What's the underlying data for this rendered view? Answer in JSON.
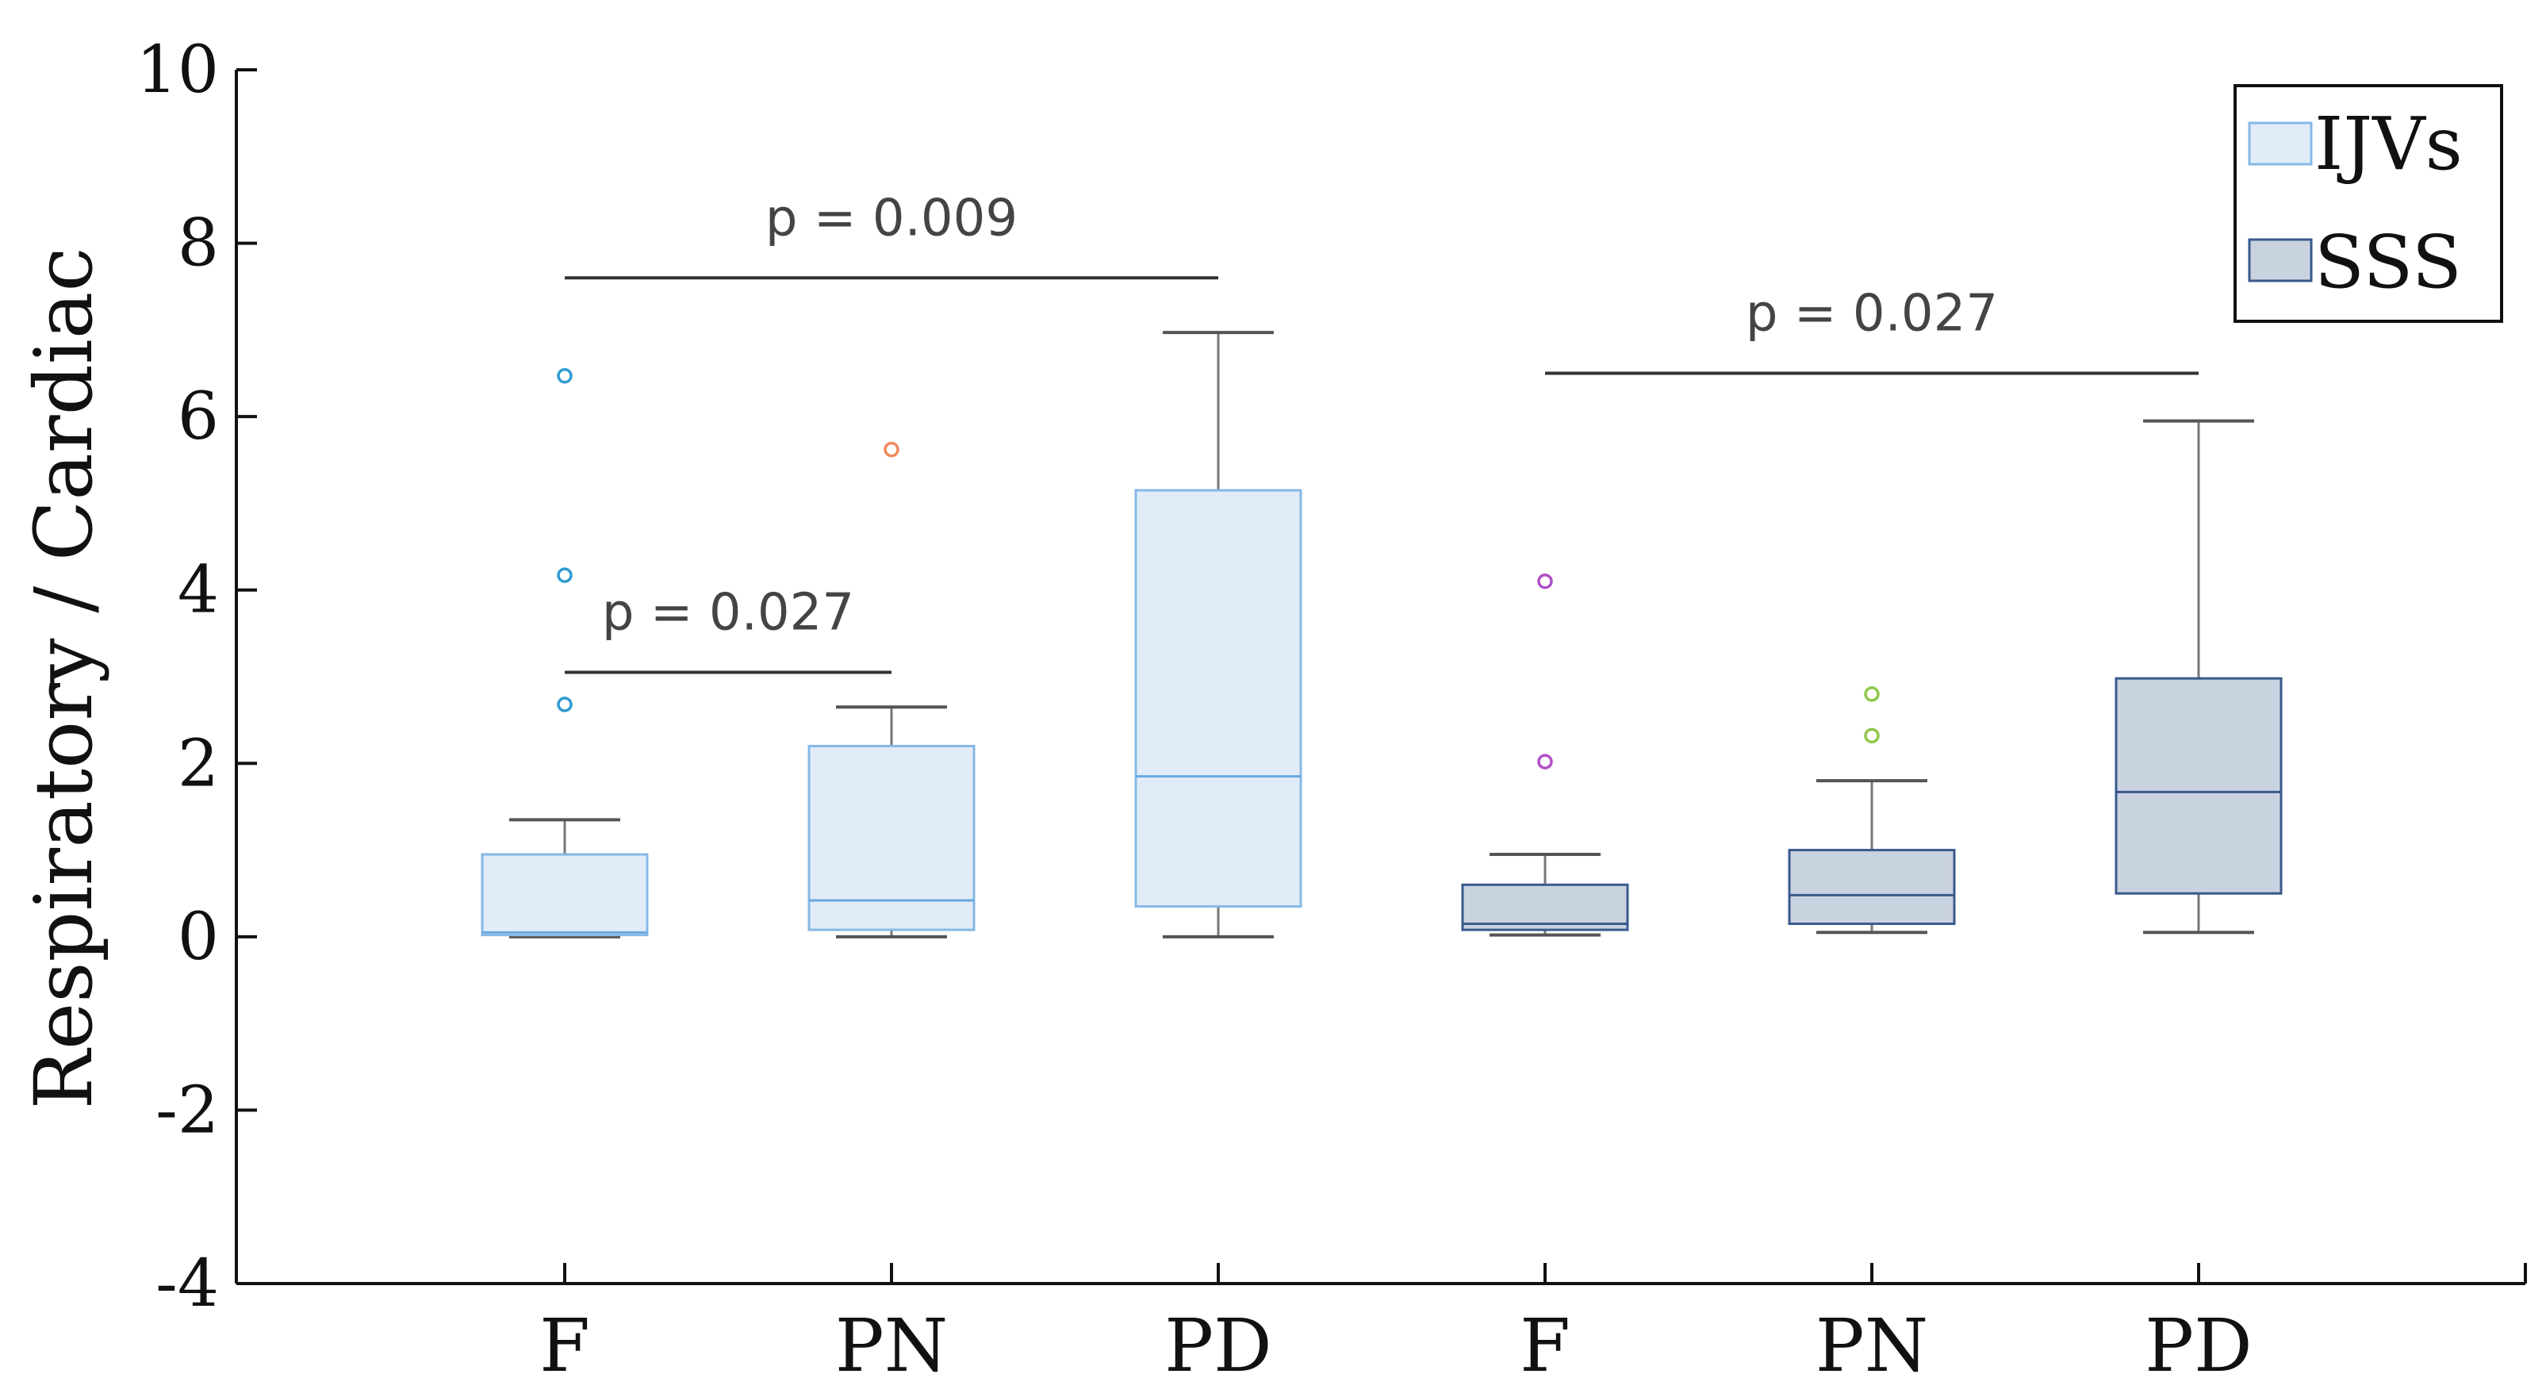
{
  "chart_data": {
    "type": "box",
    "title": "",
    "xlabel": "",
    "ylabel": "Respiratory / Cardiac",
    "ylim": [
      -4,
      10
    ],
    "yticks": [
      -4,
      -2,
      0,
      2,
      4,
      6,
      8,
      10
    ],
    "categories": [
      "F",
      "PN",
      "PD",
      "F",
      "PN",
      "PD"
    ],
    "series": [
      {
        "name": "IJVs",
        "fill": "#e1ecf8",
        "stroke": "#86b8e6",
        "median_color": "#6aa7de",
        "whisker_color": "#555555",
        "boxes": [
          {
            "category": "F",
            "whisker_low": 0.0,
            "q1": 0.02,
            "median": 0.05,
            "q3": 0.95,
            "whisker_high": 1.35,
            "outliers": [
              6.47,
              4.17,
              2.68
            ],
            "outlier_color": "#2f9bd1"
          },
          {
            "category": "PN",
            "whisker_low": 0.0,
            "q1": 0.08,
            "median": 0.42,
            "q3": 2.2,
            "whisker_high": 2.65,
            "outliers": [
              5.62
            ],
            "outlier_color": "#f08a5d"
          },
          {
            "category": "PD",
            "whisker_low": 0.0,
            "q1": 0.35,
            "median": 1.85,
            "q3": 5.15,
            "whisker_high": 6.97,
            "outliers": [],
            "outlier_color": "#e8c54a"
          }
        ]
      },
      {
        "name": "SSS",
        "fill": "#c9d3e0",
        "stroke": "#3a5a8c",
        "median_color": "#3a5a8c",
        "whisker_color": "#555555",
        "boxes": [
          {
            "category": "F",
            "whisker_low": 0.02,
            "q1": 0.08,
            "median": 0.15,
            "q3": 0.6,
            "whisker_high": 0.95,
            "outliers": [
              4.1,
              2.02
            ],
            "outlier_color": "#b04fc6"
          },
          {
            "category": "PN",
            "whisker_low": 0.05,
            "q1": 0.15,
            "median": 0.48,
            "q3": 1.0,
            "whisker_high": 1.8,
            "outliers": [
              2.8,
              2.32
            ],
            "outlier_color": "#8fc64a"
          },
          {
            "category": "PD",
            "whisker_low": 0.05,
            "q1": 0.5,
            "median": 1.67,
            "q3": 2.98,
            "whisker_high": 5.95,
            "outliers": [],
            "outlier_color": "#40b3b3"
          }
        ]
      }
    ],
    "annotations": [
      {
        "text": "p =  0.009",
        "from_index": 0,
        "to_index": 2,
        "y": 7.6
      },
      {
        "text": "p =  0.027",
        "from_index": 0,
        "to_index": 1,
        "y": 3.05
      },
      {
        "text": "p =  0.027",
        "from_index": 3,
        "to_index": 5,
        "y": 6.5
      }
    ],
    "legend": {
      "position": "top-right",
      "entries": [
        "IJVs",
        "SSS"
      ]
    },
    "grid": false
  }
}
